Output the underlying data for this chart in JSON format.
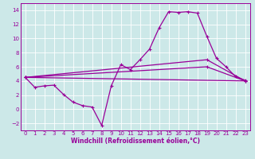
{
  "xlabel": "Windchill (Refroidissement éolien,°C)",
  "background_color": "#cce8e8",
  "grid_color": "#ffffff",
  "line_color": "#990099",
  "xlim": [
    -0.5,
    23.5
  ],
  "ylim": [
    -3,
    15
  ],
  "yticks": [
    -2,
    0,
    2,
    4,
    6,
    8,
    10,
    12,
    14
  ],
  "xticks": [
    0,
    1,
    2,
    3,
    4,
    5,
    6,
    7,
    8,
    9,
    10,
    11,
    12,
    13,
    14,
    15,
    16,
    17,
    18,
    19,
    20,
    21,
    22,
    23
  ],
  "line1_x": [
    0,
    1,
    2,
    3,
    4,
    5,
    6,
    7,
    8,
    9,
    10,
    11,
    12,
    13,
    14,
    15,
    16,
    17,
    18,
    19,
    20,
    21,
    22,
    23
  ],
  "line1_y": [
    4.5,
    3.1,
    3.3,
    3.4,
    2.1,
    1.0,
    0.5,
    0.3,
    -2.3,
    3.3,
    6.3,
    5.6,
    7.0,
    8.5,
    11.5,
    13.8,
    13.7,
    13.8,
    13.6,
    10.3,
    7.2,
    6.0,
    4.6,
    4.1
  ],
  "line2_x": [
    0,
    23
  ],
  "line2_y": [
    4.5,
    4.0
  ],
  "line3_x": [
    0,
    19,
    23
  ],
  "line3_y": [
    4.5,
    7.0,
    4.0
  ],
  "line4_x": [
    0,
    19,
    23
  ],
  "line4_y": [
    4.5,
    6.0,
    4.0
  ],
  "marker": "+",
  "markersize": 3,
  "linewidth": 0.9,
  "tick_fontsize": 5.0,
  "xlabel_fontsize": 5.5
}
